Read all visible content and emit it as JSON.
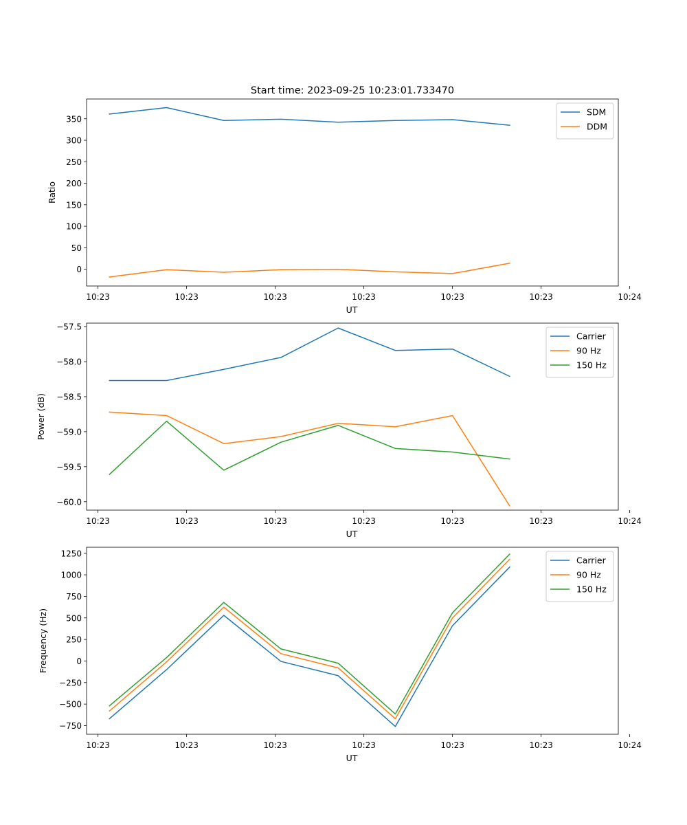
{
  "chart_data": [
    {
      "type": "line",
      "title": "Start time: 2023-09-25 10:23:01.733470",
      "xlabel": "UT",
      "ylabel": "Ratio",
      "xlim": [
        -0.4,
        8.9
      ],
      "ylim": [
        -39,
        396
      ],
      "x_tick_positions": [
        -0.2,
        1.35,
        2.9,
        4.45,
        6.0,
        7.55,
        9.1
      ],
      "x_tick_labels": [
        "10:23",
        "10:23",
        "10:23",
        "10:23",
        "10:23",
        "10:23",
        "10:24"
      ],
      "y_ticks": [
        0,
        50,
        100,
        150,
        200,
        250,
        300,
        350
      ],
      "y_tick_labels": [
        "0",
        "50",
        "100",
        "150",
        "200",
        "250",
        "300",
        "350"
      ],
      "legend": "top-right",
      "x": [
        0,
        1,
        2,
        3,
        4,
        5,
        6,
        7
      ],
      "series": [
        {
          "name": "SDM",
          "color": "#1f77b4",
          "values": [
            361,
            376,
            346,
            349,
            342,
            346,
            348,
            335
          ]
        },
        {
          "name": "DDM",
          "color": "#ff7f0e",
          "values": [
            -18,
            -1,
            -7,
            -1,
            0,
            -6,
            -10,
            14
          ]
        }
      ]
    },
    {
      "type": "line",
      "title": "",
      "xlabel": "UT",
      "ylabel": "Power (dB)",
      "xlim": [
        -0.4,
        8.9
      ],
      "ylim": [
        -60.12,
        -57.45
      ],
      "x_tick_positions": [
        -0.2,
        1.35,
        2.9,
        4.45,
        6.0,
        7.55,
        9.1
      ],
      "x_tick_labels": [
        "10:23",
        "10:23",
        "10:23",
        "10:23",
        "10:23",
        "10:23",
        "10:24"
      ],
      "y_ticks": [
        -60.0,
        -59.5,
        -59.0,
        -58.5,
        -58.0,
        -57.5
      ],
      "y_tick_labels": [
        "−60.0",
        "−59.5",
        "−59.0",
        "−58.5",
        "−58.0",
        "−57.5"
      ],
      "legend": "top-right",
      "x": [
        0,
        1,
        2,
        3,
        4,
        5,
        6,
        7
      ],
      "series": [
        {
          "name": "Carrier",
          "color": "#1f77b4",
          "values": [
            -58.27,
            -58.27,
            -58.11,
            -57.94,
            -57.52,
            -57.84,
            -57.82,
            -58.21
          ]
        },
        {
          "name": "90 Hz",
          "color": "#ff7f0e",
          "values": [
            -58.72,
            -58.77,
            -59.17,
            -59.07,
            -58.88,
            -58.93,
            -58.77,
            -60.06
          ]
        },
        {
          "name": "150 Hz",
          "color": "#2ca02c",
          "values": [
            -59.61,
            -58.85,
            -59.55,
            -59.15,
            -58.91,
            -59.24,
            -59.29,
            -59.39
          ]
        }
      ]
    },
    {
      "type": "line",
      "title": "",
      "xlabel": "UT",
      "ylabel": "Frequency (Hz)",
      "xlim": [
        -0.4,
        8.9
      ],
      "ylim": [
        -850,
        1320
      ],
      "x_tick_positions": [
        -0.2,
        1.35,
        2.9,
        4.45,
        6.0,
        7.55,
        9.1
      ],
      "x_tick_labels": [
        "10:23",
        "10:23",
        "10:23",
        "10:23",
        "10:23",
        "10:23",
        "10:24"
      ],
      "y_ticks": [
        -750,
        -500,
        -250,
        0,
        250,
        500,
        750,
        1000,
        1250
      ],
      "y_tick_labels": [
        "−750",
        "−500",
        "−250",
        "0",
        "250",
        "500",
        "750",
        "1000",
        "1250"
      ],
      "legend": "top-right",
      "x": [
        0,
        1,
        2,
        3,
        4,
        5,
        6,
        7
      ],
      "series": [
        {
          "name": "Carrier",
          "color": "#1f77b4",
          "values": [
            -670,
            -100,
            530,
            -5,
            -170,
            -760,
            410,
            1090
          ]
        },
        {
          "name": "90 Hz",
          "color": "#ff7f0e",
          "values": [
            -580,
            -10,
            625,
            85,
            -80,
            -670,
            500,
            1180
          ]
        },
        {
          "name": "150 Hz",
          "color": "#2ca02c",
          "values": [
            -520,
            40,
            680,
            140,
            -25,
            -615,
            560,
            1240
          ]
        }
      ]
    }
  ]
}
